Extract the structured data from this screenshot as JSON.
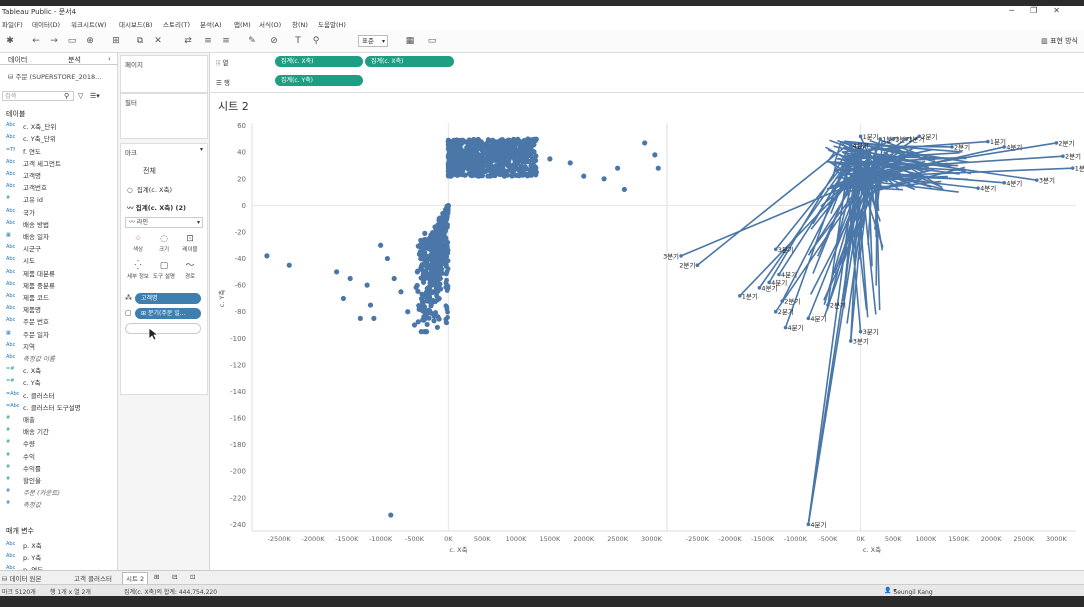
{
  "window": {
    "title": "Tableau Public - 문서4",
    "controls": [
      "─",
      "❐",
      "✕"
    ]
  },
  "menu": [
    "파일(F)",
    "데이터(D)",
    "워크시트(W)",
    "대시보드(B)",
    "스토리(T)",
    "분석(A)",
    "맵(M)",
    "서식(O)",
    "창(N)",
    "도움말(H)"
  ],
  "toolbar": {
    "format_select": "표준",
    "show_me": "표현 방식"
  },
  "left_panel": {
    "tabs": [
      "데이터",
      "분석"
    ],
    "datasource": "주문 (SUPERSTORE_2018...",
    "search_placeholder": "검색",
    "fields": [
      {
        "type": "",
        "name": "테이블",
        "kind": "head"
      },
      {
        "type": "Abc",
        "name": "c. X축_단위"
      },
      {
        "type": "Abc",
        "name": "c. Y축_단위"
      },
      {
        "type": "=Tf",
        "name": "f. 연도"
      },
      {
        "type": "Abc",
        "name": "고객 세그먼트"
      },
      {
        "type": "Abc",
        "name": "고객명"
      },
      {
        "type": "Abc",
        "name": "고객번호"
      },
      {
        "type": "#",
        "name": "고유 id",
        "kind": "measure"
      },
      {
        "type": "Abc",
        "name": "국가"
      },
      {
        "type": "Abc",
        "name": "배송 방법"
      },
      {
        "type": "▦",
        "name": "배송 일자"
      },
      {
        "type": "Abc",
        "name": "시군구"
      },
      {
        "type": "Abc",
        "name": "시도"
      },
      {
        "type": "Abc",
        "name": "제품 대분류"
      },
      {
        "type": "Abc",
        "name": "제품 중분류"
      },
      {
        "type": "Abc",
        "name": "제품 코드"
      },
      {
        "type": "Abc",
        "name": "제품명"
      },
      {
        "type": "Abc",
        "name": "주문 번호"
      },
      {
        "type": "▦",
        "name": "주문 일자"
      },
      {
        "type": "Abc",
        "name": "지역"
      },
      {
        "type": "Abc",
        "name": "측정값 이름",
        "kind": "italic"
      },
      {
        "type": "=#",
        "name": "c. X축",
        "kind": "measure"
      },
      {
        "type": "=#",
        "name": "c. Y축",
        "kind": "measure"
      },
      {
        "type": "=Abc",
        "name": "c. 클러스터"
      },
      {
        "type": "=Abc",
        "name": "c. 클러스터 도구설명"
      },
      {
        "type": "#",
        "name": "매출",
        "kind": "measure"
      },
      {
        "type": "#",
        "name": "배송 기간",
        "kind": "measure"
      },
      {
        "type": "#",
        "name": "수량",
        "kind": "measure"
      },
      {
        "type": "#",
        "name": "수익",
        "kind": "measure"
      },
      {
        "type": "#",
        "name": "수익률",
        "kind": "measure"
      },
      {
        "type": "#",
        "name": "할인율",
        "kind": "measure"
      },
      {
        "type": "#",
        "name": "주문 (카운트)",
        "kind": "italic"
      },
      {
        "type": "#",
        "name": "측정값",
        "kind": "italic"
      }
    ],
    "params_title": "매개 변수",
    "params": [
      {
        "type": "Abc",
        "name": "p. X축"
      },
      {
        "type": "Abc",
        "name": "p. Y축"
      },
      {
        "type": "Abc",
        "name": "p. 연도"
      }
    ]
  },
  "mid_panel": {
    "pages": "페이지",
    "filters": "필터",
    "marks": "마크",
    "marks_all": "전체",
    "marks_item1": "집계(c. X축)",
    "marks_item2": "집계(c. X축) (2)",
    "mark_type": "라인",
    "buttons": [
      {
        "label": "색상",
        "icon": "color-icon"
      },
      {
        "label": "크기",
        "icon": "size-icon"
      },
      {
        "label": "레이블",
        "icon": "label-icon"
      },
      {
        "label": "세부 정보",
        "icon": "detail-icon"
      },
      {
        "label": "도구 설명",
        "icon": "tooltip-icon"
      },
      {
        "label": "경로",
        "icon": "path-icon"
      }
    ],
    "pill_customer": "고객명",
    "pill_quarter": "분기(주문 일..."
  },
  "shelves": {
    "columns_label": "열",
    "rows_label": "행",
    "columns_pills": [
      "집계(c. X축)",
      "집계(c. X축)"
    ],
    "rows_pills": [
      "집계(c. Y축)"
    ]
  },
  "sheet_title": "시트 2",
  "chart_data": {
    "type": "scatter",
    "title": "",
    "xlabel": "c. X축",
    "ylabel": "c. Y축",
    "ylim": [
      -245,
      62
    ],
    "yticks": [
      60,
      40,
      20,
      0,
      -20,
      -40,
      -60,
      -80,
      -100,
      -120,
      -140,
      -160,
      -180,
      -200,
      -220,
      -240
    ],
    "xticks_labels": [
      "-2500K",
      "-2000K",
      "-1500K",
      "-1000K",
      "-500K",
      "0K",
      "500K",
      "1000K",
      "1500K",
      "2000K",
      "2500K",
      "3000K"
    ],
    "xticks_values": [
      -2500,
      -2000,
      -1500,
      -1000,
      -500,
      0,
      500,
      1000,
      1500,
      2000,
      2500,
      3000
    ],
    "xlim_left": [
      -2900,
      3200
    ],
    "xlim_right": [
      -2950,
      3300
    ],
    "color": "#4a76a8",
    "left_points": [
      [
        -2680,
        -38
      ],
      [
        -2350,
        -45
      ],
      [
        -1650,
        -50
      ],
      [
        -1550,
        -70
      ],
      [
        -1450,
        -55
      ],
      [
        -1200,
        -60
      ],
      [
        -1150,
        -75
      ],
      [
        -1300,
        -85
      ],
      [
        -1100,
        -85
      ],
      [
        -900,
        -40
      ],
      [
        -1000,
        -30
      ],
      [
        -800,
        -55
      ],
      [
        -700,
        -65
      ],
      [
        -600,
        -80
      ],
      [
        -500,
        -90
      ],
      [
        -400,
        -95
      ],
      [
        -300,
        -70
      ],
      [
        -200,
        -60
      ],
      [
        -100,
        -40
      ],
      [
        -850,
        -233
      ],
      [
        500,
        35
      ],
      [
        900,
        30
      ],
      [
        1300,
        25
      ],
      [
        1500,
        35
      ],
      [
        1800,
        32
      ],
      [
        2000,
        22
      ],
      [
        2300,
        20
      ],
      [
        2500,
        28
      ],
      [
        2600,
        12
      ],
      [
        2900,
        47
      ],
      [
        3050,
        38
      ],
      [
        3100,
        28
      ]
    ],
    "left_top_cluster": {
      "x_range": [
        0,
        1300
      ],
      "y_range": [
        22,
        50
      ]
    },
    "left_bottom_cluster": {
      "x_range": [
        -500,
        0
      ],
      "y_range": [
        -95,
        0
      ]
    },
    "right_path_labels": [
      {
        "label": "1분기",
        "x": 0,
        "y": 52
      },
      {
        "label": "1분기",
        "x": 300,
        "y": 50
      },
      {
        "label": "3분기",
        "x": 500,
        "y": 50
      },
      {
        "label": "3분기",
        "x": 700,
        "y": 50
      },
      {
        "label": "2분기",
        "x": 900,
        "y": 52
      },
      {
        "label": "4분기",
        "x": -150,
        "y": 45
      },
      {
        "label": "2분기",
        "x": 1400,
        "y": 44
      },
      {
        "label": "1분기",
        "x": 1950,
        "y": 48
      },
      {
        "label": "4분기",
        "x": 2200,
        "y": 44
      },
      {
        "label": "2분기",
        "x": 3000,
        "y": 47
      },
      {
        "label": "2분기",
        "x": 3100,
        "y": 37
      },
      {
        "label": "1분기",
        "x": 3250,
        "y": 28
      },
      {
        "label": "4분기",
        "x": 2200,
        "y": 17
      },
      {
        "label": "3분기",
        "x": 2700,
        "y": 19
      },
      {
        "label": "4분기",
        "x": 1800,
        "y": 13
      },
      {
        "label": "3분기",
        "x": -2750,
        "y": -38
      },
      {
        "label": "2분기",
        "x": -2500,
        "y": -45
      },
      {
        "label": "3분기",
        "x": -1300,
        "y": -33
      },
      {
        "label": "4분기",
        "x": -1250,
        "y": -52
      },
      {
        "label": "4분기",
        "x": -1400,
        "y": -58
      },
      {
        "label": "4분기",
        "x": -1550,
        "y": -62
      },
      {
        "label": "1분기",
        "x": -1850,
        "y": -68
      },
      {
        "label": "2분기",
        "x": -1200,
        "y": -72
      },
      {
        "label": "2분기",
        "x": -1300,
        "y": -80
      },
      {
        "label": "2분기",
        "x": -500,
        "y": -75
      },
      {
        "label": "4분기",
        "x": -800,
        "y": -85
      },
      {
        "label": "4분기",
        "x": -1150,
        "y": -92
      },
      {
        "label": "3분기",
        "x": 0,
        "y": -95
      },
      {
        "label": "3분기",
        "x": -150,
        "y": -102
      },
      {
        "label": "4분기",
        "x": -800,
        "y": -240
      }
    ]
  },
  "statusbar": {
    "tabs": [
      "데이터 원본",
      "고객 클러스터",
      "시트 2"
    ],
    "active_tab": "시트 2"
  },
  "bottombar": {
    "marks_count": "마크 5120개",
    "rows_cols": "행 1개 x 열 2개",
    "sum": "집계(c. X축)의 합계: 444,754,220",
    "user": "Seungil Kang"
  }
}
